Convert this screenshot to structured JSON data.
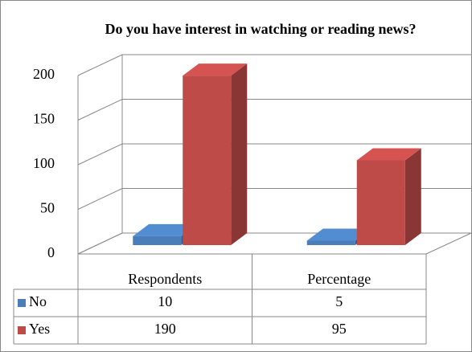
{
  "chart_data": {
    "type": "bar",
    "title": "Do you have interest in watching or reading news?",
    "categories": [
      "Respondents",
      "Percentage"
    ],
    "series": [
      {
        "name": "No",
        "color": "#4a7ebb",
        "values": [
          10,
          5
        ]
      },
      {
        "name": "Yes",
        "color": "#be4b48",
        "values": [
          190,
          95
        ]
      }
    ],
    "ylim": [
      0,
      200
    ],
    "yticks": [
      0,
      50,
      100,
      150,
      200
    ],
    "grid": true
  }
}
